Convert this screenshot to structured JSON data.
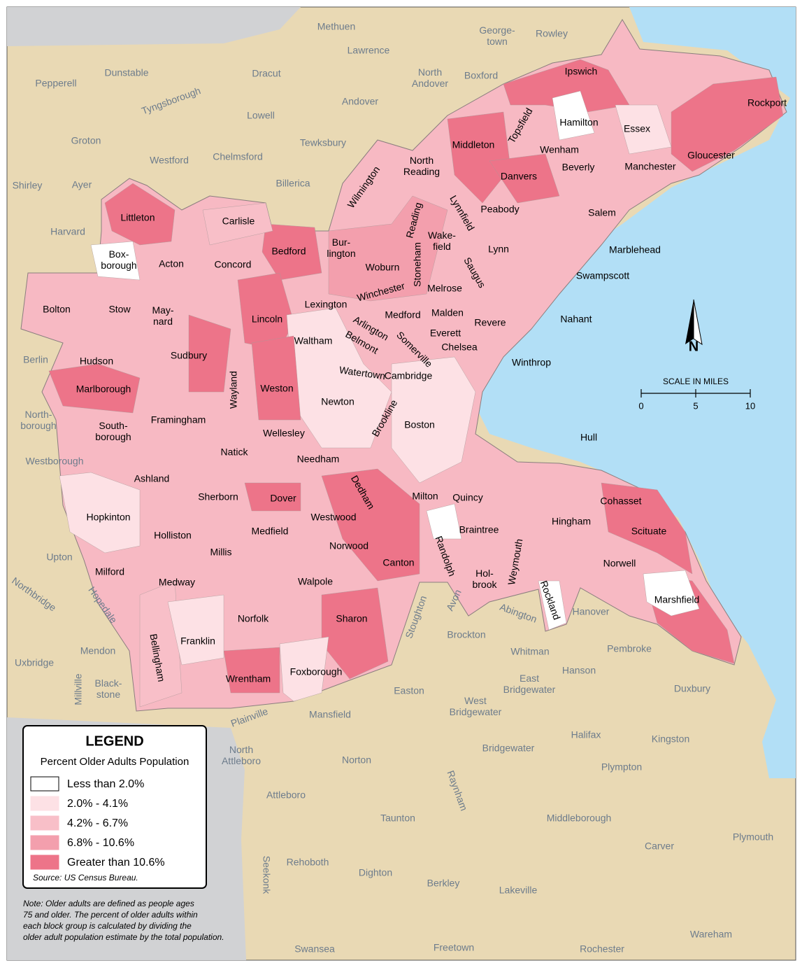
{
  "legend": {
    "title": "LEGEND",
    "subtitle": "Percent Older Adults Population",
    "classes": [
      {
        "label": "Less than 2.0%",
        "color": "#ffffff"
      },
      {
        "label": "2.0% - 4.1%",
        "color": "#fde1e5"
      },
      {
        "label": "4.2% - 6.7%",
        "color": "#f8bfc8"
      },
      {
        "label": "6.8% - 10.6%",
        "color": "#f39fad"
      },
      {
        "label": "Greater than 10.6%",
        "color": "#ed7489"
      }
    ],
    "source": "Source: US Census Bureau."
  },
  "note": [
    "Note: Older adults are defined as people ages",
    "75 and older. The percent of older adults within",
    "each block group is calculated by dividing the",
    "older adult population estimate by the total population."
  ],
  "scale": {
    "title": "SCALE IN MILES",
    "ticks": [
      0,
      5,
      10
    ]
  },
  "north": "N",
  "towns": [
    "Ipswich",
    "Rockport",
    "Topsfield",
    "Hamilton",
    "Essex",
    "Middleton",
    "Wenham",
    "Gloucester",
    "Beverly",
    "Manchester",
    [
      "North",
      "Reading"
    ],
    "Danvers",
    "Wilmington",
    "Peabody",
    "Salem",
    "Lynnfield",
    "Reading",
    "Littleton",
    "Carlisle",
    [
      "Wake-",
      "field"
    ],
    "Marblehead",
    "Lynn",
    "Bedford",
    [
      "Bur-",
      "lington"
    ],
    [
      "Box-",
      "borough"
    ],
    "Acton",
    "Concord",
    "Stoneham",
    "Saugus",
    "Woburn",
    "Swampscott",
    "Melrose",
    "Winchester",
    "Bolton",
    "Stow",
    [
      "May-",
      "nard"
    ],
    "Lexington",
    "Medford",
    "Malden",
    "Revere",
    "Nahant",
    "Lincoln",
    "Arlington",
    "Everett",
    "Belmont",
    "Somerville",
    "Chelsea",
    "Waltham",
    "Hudson",
    "Sudbury",
    "Winthrop",
    "Watertown",
    "Cambridge",
    "Wayland",
    "Weston",
    "Marlborough",
    "Newton",
    "Framingham",
    [
      "South-",
      "borough"
    ],
    "Brookline",
    "Boston",
    "Wellesley",
    "Hull",
    "Natick",
    "Needham",
    "Ashland",
    "Sherborn",
    "Dover",
    "Dedham",
    "Milton",
    "Quincy",
    "Cohasset",
    "Hopkinton",
    "Westwood",
    "Hingham",
    "Medfield",
    "Braintree",
    "Scituate",
    "Holliston",
    "Weymouth",
    "Norwood",
    "Millis",
    "Randolph",
    "Canton",
    "Norwell",
    "Milford",
    "Medway",
    "Walpole",
    [
      "Hol-",
      "brook"
    ],
    "Rockland",
    "Marshfield",
    "Sharon",
    "Norfolk",
    "Franklin",
    "Bellingham",
    "Foxborough",
    "Wrentham"
  ],
  "outside_towns": [
    "Methuen",
    [
      "George-",
      "town"
    ],
    "Rowley",
    "Lawrence",
    "Dunstable",
    "Dracut",
    [
      "North",
      "Andover"
    ],
    "Boxford",
    "Pepperell",
    "Tyngsborough",
    "Andover",
    "Lowell",
    "Groton",
    "Tewksbury",
    "Chelmsford",
    "Westford",
    "Shirley",
    "Ayer",
    "Billerica",
    "Harvard",
    "Berlin",
    [
      "North-",
      "borough"
    ],
    "Westborough",
    "Upton",
    "Northbridge",
    "Hopedale",
    "Mendon",
    "Uxbridge",
    "Millville",
    [
      "Black-",
      "stone"
    ],
    "Plainville",
    "Mansfield",
    "Stoughton",
    "Avon",
    "Abington",
    "Hanover",
    "Brockton",
    "Whitman",
    "Pembroke",
    "Hanson",
    [
      "East",
      "Bridgewater"
    ],
    "Easton",
    [
      "West",
      "Bridgewater"
    ],
    "Duxbury",
    "Halifax",
    "Kingston",
    [
      "North",
      "Attleboro"
    ],
    "Norton",
    "Bridgewater",
    "Plympton",
    "Raynham",
    "Attleboro",
    "Taunton",
    "Middleborough",
    "Plymouth",
    "Carver",
    "Seekonk",
    "Rehoboth",
    "Dighton",
    "Berkley",
    "Lakeville",
    "Swansea",
    "Freetown",
    "Rochester",
    "Wareham"
  ]
}
